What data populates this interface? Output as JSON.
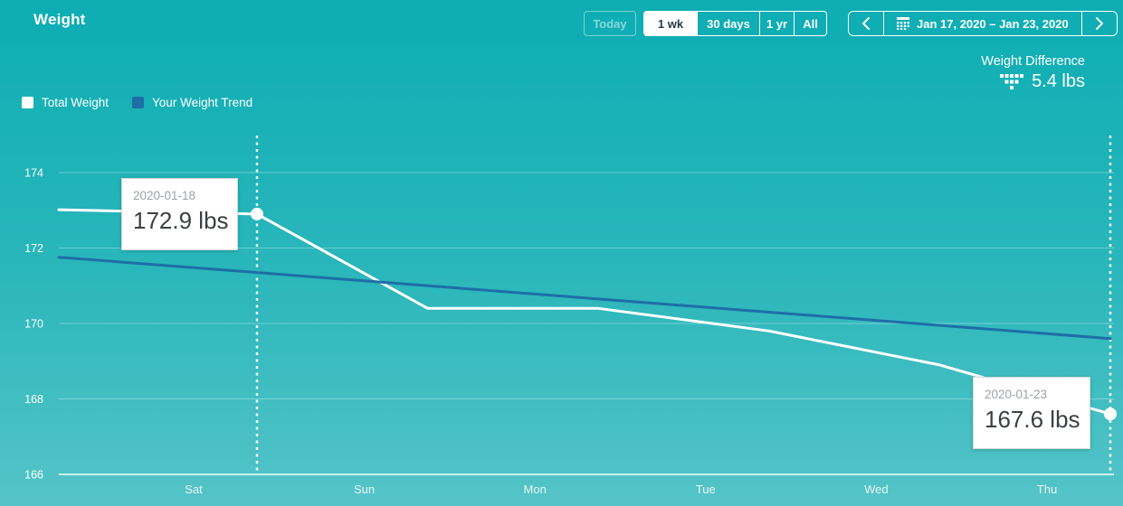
{
  "page": {
    "title": "Weight"
  },
  "toolbar": {
    "today_label": "Today",
    "ranges": [
      {
        "label": "1 wk",
        "selected": true
      },
      {
        "label": "30 days",
        "selected": false
      },
      {
        "label": "1 yr",
        "selected": false
      },
      {
        "label": "All",
        "selected": false
      }
    ],
    "date_range_label": "Jan 17, 2020 – Jan 23, 2020"
  },
  "summary": {
    "label": "Weight Difference",
    "value": "5.4 lbs"
  },
  "legend": {
    "items": [
      {
        "label": "Total Weight",
        "color": "#FFFFFF"
      },
      {
        "label": "Your Weight Trend",
        "color": "#1E6EA6"
      }
    ]
  },
  "tooltips": [
    {
      "date": "2020-01-18",
      "value": "172.9 lbs"
    },
    {
      "date": "2020-01-23",
      "value": "167.6 lbs"
    }
  ],
  "chart_data": {
    "type": "line",
    "title": "Weight",
    "unit": "lbs",
    "y_ticks": [
      174,
      172,
      170,
      168,
      166
    ],
    "ylim": [
      166,
      174
    ],
    "x_labels": [
      {
        "label": "Sat",
        "day_index": 1
      },
      {
        "label": "Sun",
        "day_index": 2
      },
      {
        "label": "Mon",
        "day_index": 3
      },
      {
        "label": "Tue",
        "day_index": 4
      },
      {
        "label": "Wed",
        "day_index": 5
      },
      {
        "label": "Thu",
        "day_index": 6
      }
    ],
    "date_start": "2020-01-17",
    "grid": true,
    "legend_position": "top-left",
    "series": [
      {
        "name": "Total Weight",
        "color": "#FFFFFF",
        "points": [
          {
            "date": "2020-01-17",
            "lbs": 173.0
          },
          {
            "date": "2020-01-18",
            "lbs": 172.9
          },
          {
            "date": "2020-01-19",
            "lbs": 170.4
          },
          {
            "date": "2020-01-20",
            "lbs": 170.4
          },
          {
            "date": "2020-01-21",
            "lbs": 169.8
          },
          {
            "date": "2020-01-22",
            "lbs": 168.9
          },
          {
            "date": "2020-01-23",
            "lbs": 167.6
          }
        ]
      },
      {
        "name": "Your Weight Trend",
        "color": "#1E6EA6",
        "points": [
          {
            "date": "2020-01-17",
            "lbs": 171.7
          },
          {
            "date": "2020-01-23",
            "lbs": 169.6
          }
        ]
      }
    ],
    "markers": [
      {
        "date": "2020-01-18",
        "lbs": 172.9
      },
      {
        "date": "2020-01-23",
        "lbs": 167.6
      }
    ]
  },
  "colors": {
    "bg_top": "#0CADB3",
    "bg_bottom": "#55C4C8",
    "total_line": "#FFFFFF",
    "trend_line": "#1E6EA6",
    "selected_button_text": "#253B4B"
  }
}
